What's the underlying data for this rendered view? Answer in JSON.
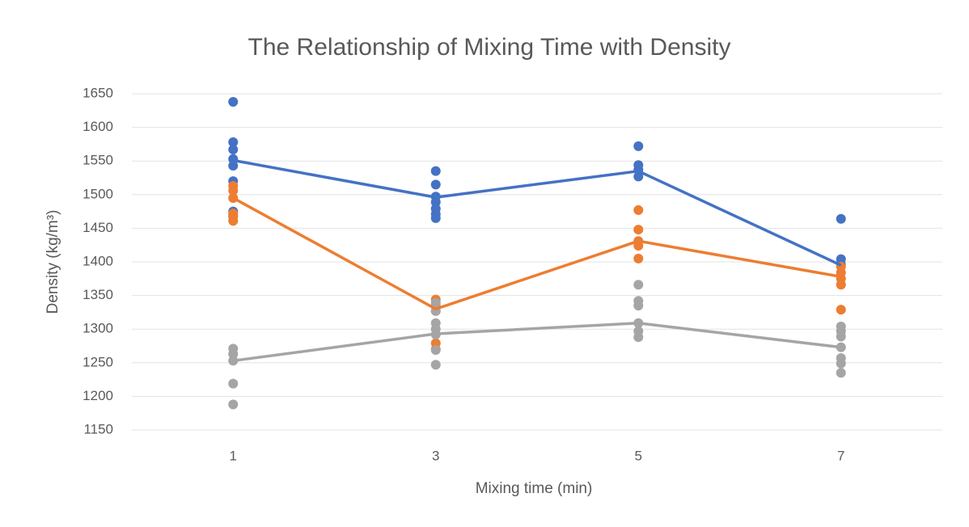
{
  "chart_data": {
    "type": "scatter-line",
    "title": "The Relationship of Mixing Time with Density",
    "x_label": "Mixing time (min)",
    "y_label": "Density (kg/m³)",
    "categories": [
      "1",
      "3",
      "5",
      "7"
    ],
    "ylim": [
      1150,
      1650
    ],
    "yticks": [
      1150,
      1200,
      1250,
      1300,
      1350,
      1400,
      1450,
      1500,
      1550,
      1600,
      1650
    ],
    "grid": true,
    "series": [
      {
        "color": "#4472c4",
        "values": [
          1551,
          1496,
          1535,
          1395
        ],
        "points": [
          [
            1638,
            1578,
            1567,
            1553,
            1543,
            1520,
            1475,
            1469
          ],
          [
            1535,
            1515,
            1497,
            1489,
            1479,
            1471,
            1465
          ],
          [
            1572,
            1544,
            1537,
            1527
          ],
          [
            1464,
            1404,
            1396
          ]
        ]
      },
      {
        "color": "#ed7d31",
        "values": [
          1495,
          1330,
          1431,
          1378
        ],
        "points": [
          [
            1513,
            1506,
            1495,
            1472,
            1467,
            1461
          ],
          [
            1344,
            1335,
            1327,
            1279,
            1270
          ],
          [
            1477,
            1448,
            1431,
            1424,
            1405
          ],
          [
            1393,
            1384,
            1375,
            1366,
            1329
          ]
        ]
      },
      {
        "color": "#a5a5a5",
        "values": [
          1253,
          1293,
          1309,
          1273
        ],
        "points": [
          [
            1271,
            1263,
            1253,
            1219,
            1188
          ],
          [
            1339,
            1327,
            1309,
            1300,
            1292,
            1269,
            1247
          ],
          [
            1366,
            1342,
            1335,
            1309,
            1297,
            1288
          ],
          [
            1304,
            1297,
            1289,
            1273,
            1257,
            1249,
            1235
          ]
        ]
      }
    ]
  }
}
